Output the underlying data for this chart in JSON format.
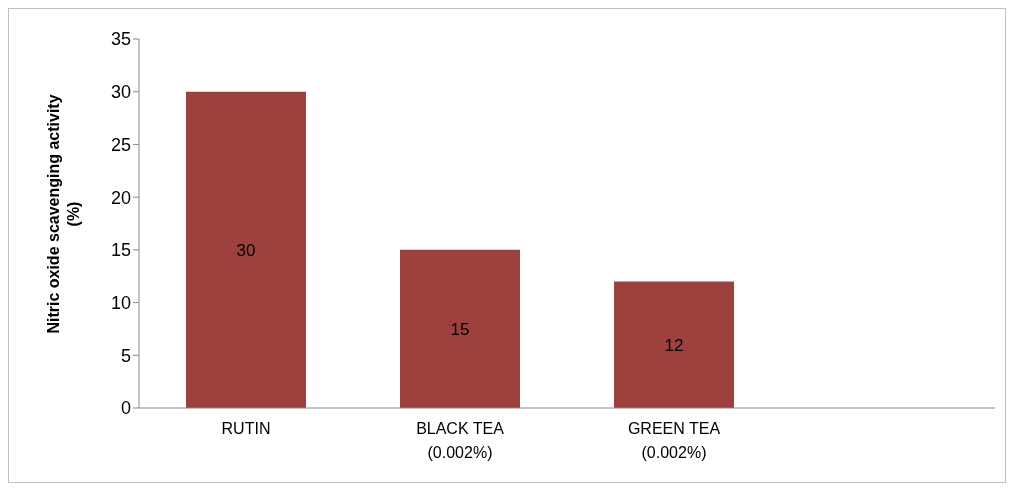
{
  "chart_data": {
    "type": "bar",
    "ylabel": "Nitric oxide scavenging activity (%)",
    "categories": [
      "RUTIN",
      "BLACK TEA (0.002%)",
      "GREEN TEA (0.002%)",
      null
    ],
    "values": [
      30,
      15,
      12,
      null
    ],
    "color": "#9e413e",
    "ylim": [
      0,
      35
    ],
    "yticks": [
      0,
      5,
      10,
      15,
      20,
      25,
      30,
      35
    ],
    "data_labels": true,
    "grid": false
  }
}
